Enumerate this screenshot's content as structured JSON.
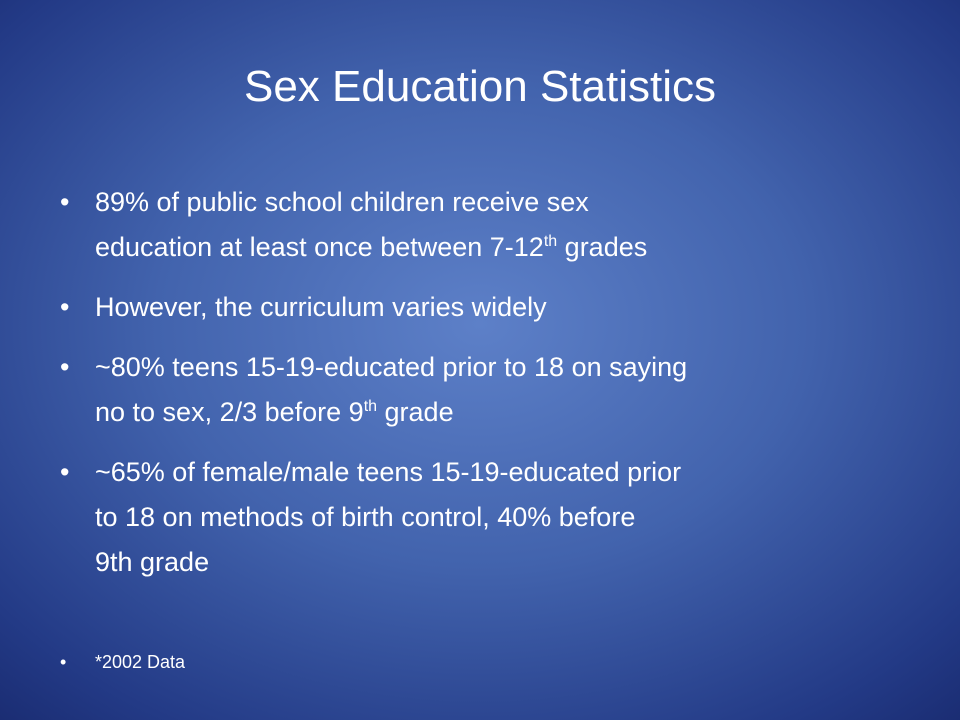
{
  "slide": {
    "title": "Sex Education Statistics",
    "bullets": [
      {
        "lines": [
          [
            {
              "text": "89% of public school children receive sex"
            }
          ],
          [
            {
              "text": "education at least once between 7-12"
            },
            {
              "sup": "th"
            },
            {
              "text": " grades"
            }
          ]
        ]
      },
      {
        "lines": [
          [
            {
              "text": "However, the curriculum varies widely"
            }
          ]
        ]
      },
      {
        "lines": [
          [
            {
              "text": "~80% teens 15-19-educated prior to 18 on saying"
            }
          ],
          [
            {
              "text": "no to sex, 2/3 before 9"
            },
            {
              "sup": "th"
            },
            {
              "text": " grade"
            }
          ]
        ]
      },
      {
        "lines": [
          [
            {
              "text": "~65% of female/male teens 15-19-educated prior"
            }
          ],
          [
            {
              "text": "to 18 on methods of birth control, 40% before"
            }
          ],
          [
            {
              "text": "9th grade"
            }
          ]
        ]
      }
    ],
    "footnote": "*2002 Data"
  }
}
